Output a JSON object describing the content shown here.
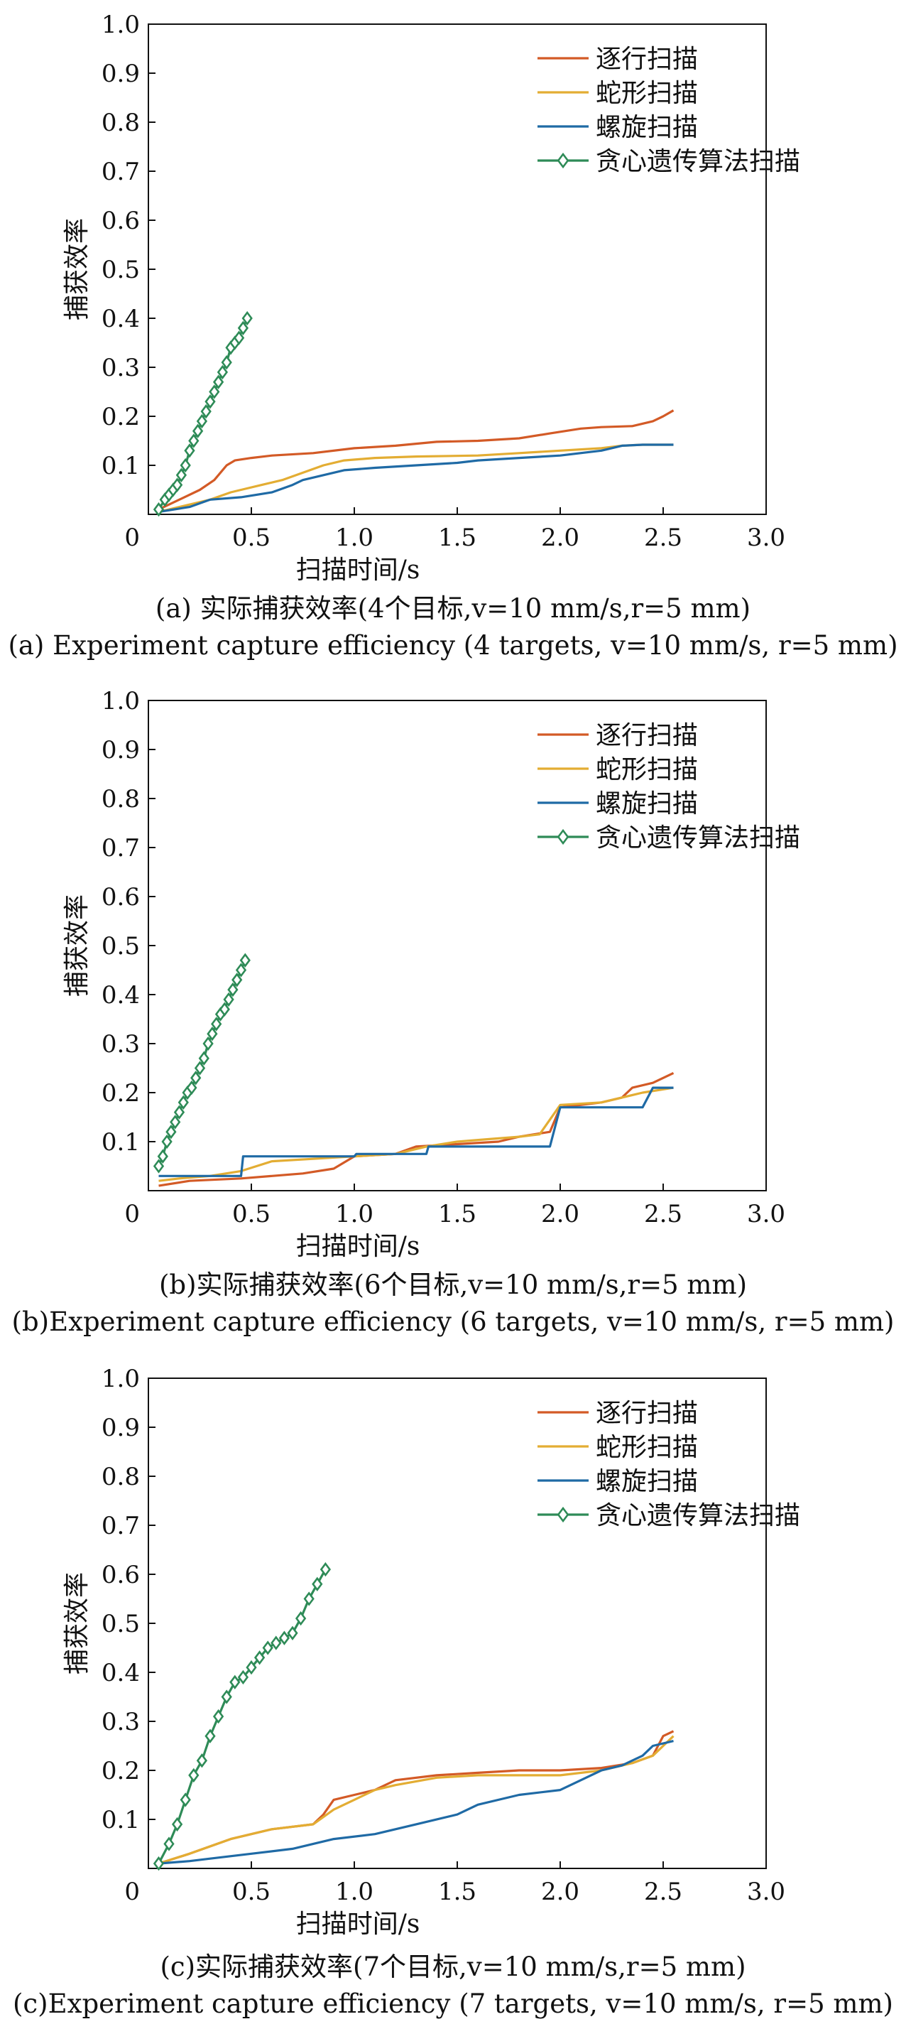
{
  "colors": {
    "zhuhang": "#d35a26",
    "shexing": "#e3ad33",
    "luoxuan": "#1f6aa5",
    "tanxin": "#2e8b57"
  },
  "charts": [
    {
      "chart_data": {
        "type": "line",
        "xlabel": "扫描时间/s",
        "ylabel": "捕获效率",
        "xlim": [
          0,
          3.0
        ],
        "ylim": [
          0,
          1.0
        ],
        "xticks": [
          "0",
          "0.5",
          "1.0",
          "1.5",
          "2.0",
          "2.5",
          "3.0"
        ],
        "yticks": [
          "0.1",
          "0.2",
          "0.3",
          "0.4",
          "0.5",
          "0.6",
          "0.7",
          "0.8",
          "0.9",
          "1.0"
        ],
        "legend_position": "top-right",
        "grid": false,
        "series": [
          {
            "name": "逐行扫描",
            "color_key": "zhuhang",
            "marker": "none",
            "x": [
              0.05,
              0.15,
              0.25,
              0.32,
              0.38,
              0.42,
              0.5,
              0.6,
              0.8,
              1.0,
              1.2,
              1.4,
              1.6,
              1.8,
              1.95,
              2.1,
              2.2,
              2.35,
              2.45,
              2.5,
              2.55
            ],
            "y": [
              0.01,
              0.03,
              0.05,
              0.07,
              0.1,
              0.11,
              0.115,
              0.12,
              0.125,
              0.135,
              0.14,
              0.148,
              0.15,
              0.155,
              0.165,
              0.175,
              0.178,
              0.18,
              0.19,
              0.2,
              0.212
            ]
          },
          {
            "name": "蛇形扫描",
            "color_key": "shexing",
            "marker": "none",
            "x": [
              0.05,
              0.2,
              0.3,
              0.4,
              0.45,
              0.55,
              0.65,
              0.75,
              0.85,
              0.95,
              1.1,
              1.3,
              1.6,
              1.8,
              2.0,
              2.2,
              2.3,
              2.4,
              2.55
            ],
            "y": [
              0.005,
              0.02,
              0.03,
              0.045,
              0.05,
              0.06,
              0.07,
              0.085,
              0.1,
              0.11,
              0.115,
              0.118,
              0.12,
              0.125,
              0.13,
              0.135,
              0.14,
              0.142,
              0.142
            ]
          },
          {
            "name": "螺旋扫描",
            "color_key": "luoxuan",
            "marker": "none",
            "x": [
              0.05,
              0.2,
              0.3,
              0.45,
              0.6,
              0.7,
              0.75,
              0.85,
              0.95,
              1.1,
              1.3,
              1.5,
              1.6,
              1.8,
              2.0,
              2.2,
              2.3,
              2.4,
              2.55
            ],
            "y": [
              0.005,
              0.015,
              0.03,
              0.035,
              0.045,
              0.06,
              0.07,
              0.08,
              0.09,
              0.095,
              0.1,
              0.105,
              0.11,
              0.115,
              0.12,
              0.13,
              0.14,
              0.142,
              0.142
            ]
          },
          {
            "name": "贪心遗传算法扫描",
            "color_key": "tanxin",
            "marker": "diamond",
            "x": [
              0.05,
              0.08,
              0.1,
              0.12,
              0.14,
              0.16,
              0.18,
              0.2,
              0.22,
              0.24,
              0.26,
              0.28,
              0.3,
              0.32,
              0.34,
              0.36,
              0.38,
              0.4,
              0.42,
              0.44,
              0.46,
              0.48
            ],
            "y": [
              0.01,
              0.03,
              0.04,
              0.05,
              0.06,
              0.08,
              0.1,
              0.13,
              0.15,
              0.17,
              0.19,
              0.21,
              0.23,
              0.25,
              0.27,
              0.29,
              0.31,
              0.34,
              0.35,
              0.36,
              0.38,
              0.4
            ]
          }
        ]
      },
      "caption_cn": "(a) 实际捕获效率(4个目标,v=10 mm/s,r=5 mm)",
      "caption_en": "(a) Experiment capture efficiency (4 targets, v=10 mm/s, r=5 mm)"
    },
    {
      "chart_data": {
        "type": "line",
        "xlabel": "扫描时间/s",
        "ylabel": "捕获效率",
        "xlim": [
          0,
          3.0
        ],
        "ylim": [
          0,
          1.0
        ],
        "xticks": [
          "0",
          "0.5",
          "1.0",
          "1.5",
          "2.0",
          "2.5",
          "3.0"
        ],
        "yticks": [
          "0.1",
          "0.2",
          "0.3",
          "0.4",
          "0.5",
          "0.6",
          "0.7",
          "0.8",
          "0.9",
          "1.0"
        ],
        "legend_position": "top-right",
        "grid": false,
        "series": [
          {
            "name": "逐行扫描",
            "color_key": "zhuhang",
            "marker": "none",
            "x": [
              0.05,
              0.2,
              0.3,
              0.45,
              0.6,
              0.75,
              0.9,
              1.0,
              1.2,
              1.3,
              1.5,
              1.7,
              1.8,
              1.95,
              2.0,
              2.2,
              2.3,
              2.35,
              2.45,
              2.55
            ],
            "y": [
              0.01,
              0.02,
              0.022,
              0.025,
              0.03,
              0.035,
              0.045,
              0.07,
              0.075,
              0.09,
              0.095,
              0.1,
              0.11,
              0.12,
              0.17,
              0.18,
              0.19,
              0.21,
              0.22,
              0.24
            ]
          },
          {
            "name": "蛇形扫描",
            "color_key": "shexing",
            "marker": "none",
            "x": [
              0.05,
              0.15,
              0.3,
              0.45,
              0.6,
              0.8,
              1.0,
              1.2,
              1.35,
              1.5,
              1.65,
              1.8,
              1.9,
              2.0,
              2.2,
              2.3,
              2.4,
              2.55
            ],
            "y": [
              0.02,
              0.025,
              0.03,
              0.04,
              0.06,
              0.065,
              0.07,
              0.075,
              0.09,
              0.1,
              0.105,
              0.11,
              0.115,
              0.175,
              0.18,
              0.19,
              0.2,
              0.21
            ]
          },
          {
            "name": "螺旋扫描",
            "color_key": "luoxuan",
            "marker": "none",
            "x": [
              0.05,
              0.45,
              0.46,
              1.0,
              1.01,
              1.35,
              1.36,
              1.95,
              2.0,
              2.4,
              2.45,
              2.55
            ],
            "y": [
              0.03,
              0.03,
              0.07,
              0.07,
              0.075,
              0.075,
              0.09,
              0.09,
              0.17,
              0.17,
              0.21,
              0.21
            ]
          },
          {
            "name": "贪心遗传算法扫描",
            "color_key": "tanxin",
            "marker": "diamond",
            "x": [
              0.05,
              0.07,
              0.09,
              0.11,
              0.13,
              0.15,
              0.17,
              0.19,
              0.21,
              0.23,
              0.25,
              0.27,
              0.29,
              0.31,
              0.33,
              0.35,
              0.37,
              0.39,
              0.41,
              0.43,
              0.45,
              0.47
            ],
            "y": [
              0.05,
              0.07,
              0.1,
              0.12,
              0.14,
              0.16,
              0.18,
              0.2,
              0.21,
              0.23,
              0.25,
              0.27,
              0.3,
              0.32,
              0.34,
              0.36,
              0.37,
              0.39,
              0.41,
              0.43,
              0.45,
              0.47
            ]
          }
        ]
      },
      "caption_cn": "(b)实际捕获效率(6个目标,v=10 mm/s,r=5 mm)",
      "caption_en": "(b)Experiment capture efficiency (6 targets, v=10 mm/s, r=5 mm)"
    },
    {
      "chart_data": {
        "type": "line",
        "xlabel": "扫描时间/s",
        "ylabel": "捕获效率",
        "xlim": [
          0,
          3.0
        ],
        "ylim": [
          0,
          1.0
        ],
        "xticks": [
          "0",
          "0.5",
          "1.0",
          "1.5",
          "2.0",
          "2.5",
          "3.0"
        ],
        "yticks": [
          "0.1",
          "0.2",
          "0.3",
          "0.4",
          "0.5",
          "0.6",
          "0.7",
          "0.8",
          "0.9",
          "1.0"
        ],
        "legend_position": "top-right",
        "grid": false,
        "series": [
          {
            "name": "逐行扫描",
            "color_key": "zhuhang",
            "marker": "none",
            "x": [
              0.05,
              0.2,
              0.4,
              0.6,
              0.8,
              0.85,
              0.9,
              1.0,
              1.1,
              1.2,
              1.4,
              1.6,
              1.8,
              2.0,
              2.2,
              2.35,
              2.45,
              2.5,
              2.55
            ],
            "y": [
              0.01,
              0.03,
              0.06,
              0.08,
              0.09,
              0.11,
              0.14,
              0.15,
              0.16,
              0.18,
              0.19,
              0.195,
              0.2,
              0.2,
              0.205,
              0.215,
              0.23,
              0.27,
              0.28
            ]
          },
          {
            "name": "蛇形扫描",
            "color_key": "shexing",
            "marker": "none",
            "x": [
              0.05,
              0.2,
              0.4,
              0.6,
              0.8,
              0.9,
              1.0,
              1.1,
              1.2,
              1.4,
              1.6,
              1.8,
              2.0,
              2.2,
              2.35,
              2.45,
              2.55
            ],
            "y": [
              0.01,
              0.03,
              0.06,
              0.08,
              0.09,
              0.12,
              0.14,
              0.16,
              0.17,
              0.185,
              0.19,
              0.19,
              0.19,
              0.2,
              0.215,
              0.23,
              0.27
            ]
          },
          {
            "name": "螺旋扫描",
            "color_key": "luoxuan",
            "marker": "none",
            "x": [
              0.05,
              0.2,
              0.3,
              0.5,
              0.7,
              0.9,
              1.1,
              1.3,
              1.5,
              1.6,
              1.8,
              2.0,
              2.1,
              2.2,
              2.3,
              2.4,
              2.45,
              2.55
            ],
            "y": [
              0.01,
              0.015,
              0.02,
              0.03,
              0.04,
              0.06,
              0.07,
              0.09,
              0.11,
              0.13,
              0.15,
              0.16,
              0.18,
              0.2,
              0.21,
              0.23,
              0.25,
              0.26
            ]
          },
          {
            "name": "贪心遗传算法扫描",
            "color_key": "tanxin",
            "marker": "diamond",
            "x": [
              0.05,
              0.1,
              0.14,
              0.18,
              0.22,
              0.26,
              0.3,
              0.34,
              0.38,
              0.42,
              0.46,
              0.5,
              0.54,
              0.58,
              0.62,
              0.66,
              0.7,
              0.74,
              0.78,
              0.82,
              0.86
            ],
            "y": [
              0.01,
              0.05,
              0.09,
              0.14,
              0.19,
              0.22,
              0.27,
              0.31,
              0.35,
              0.38,
              0.39,
              0.41,
              0.43,
              0.45,
              0.46,
              0.47,
              0.48,
              0.51,
              0.55,
              0.58,
              0.61
            ]
          }
        ]
      },
      "caption_cn": "(c)实际捕获效率(7个目标,v=10 mm/s,r=5 mm)",
      "caption_en": "(c)Experiment capture efficiency (7 targets, v=10 mm/s, r=5 mm)"
    }
  ]
}
